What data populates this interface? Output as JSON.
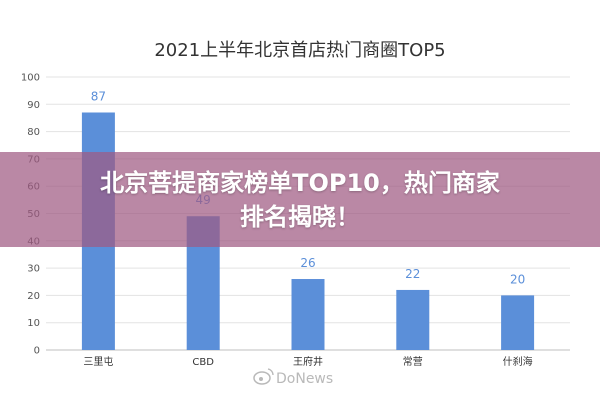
{
  "chart_data": {
    "type": "bar",
    "title": "2021上半年北京首店热门商圈TOP5",
    "categories": [
      "三里屯",
      "CBD",
      "王府井",
      "常营",
      "什刹海"
    ],
    "values": [
      87,
      49,
      26,
      22,
      20
    ],
    "ylim": [
      0,
      100
    ],
    "yticks": [
      0,
      10,
      20,
      30,
      40,
      50,
      60,
      70,
      80,
      90,
      100
    ],
    "grid": true,
    "bar_color": "#5b8fd9",
    "xlabel": "",
    "ylabel": ""
  },
  "overlay": {
    "line1": "北京菩提商家榜单TOP10，热门商家",
    "line2": "排名揭晓！",
    "color": "#a05a82"
  },
  "watermark": {
    "text": "DoNews",
    "icon": "weibo-icon"
  }
}
